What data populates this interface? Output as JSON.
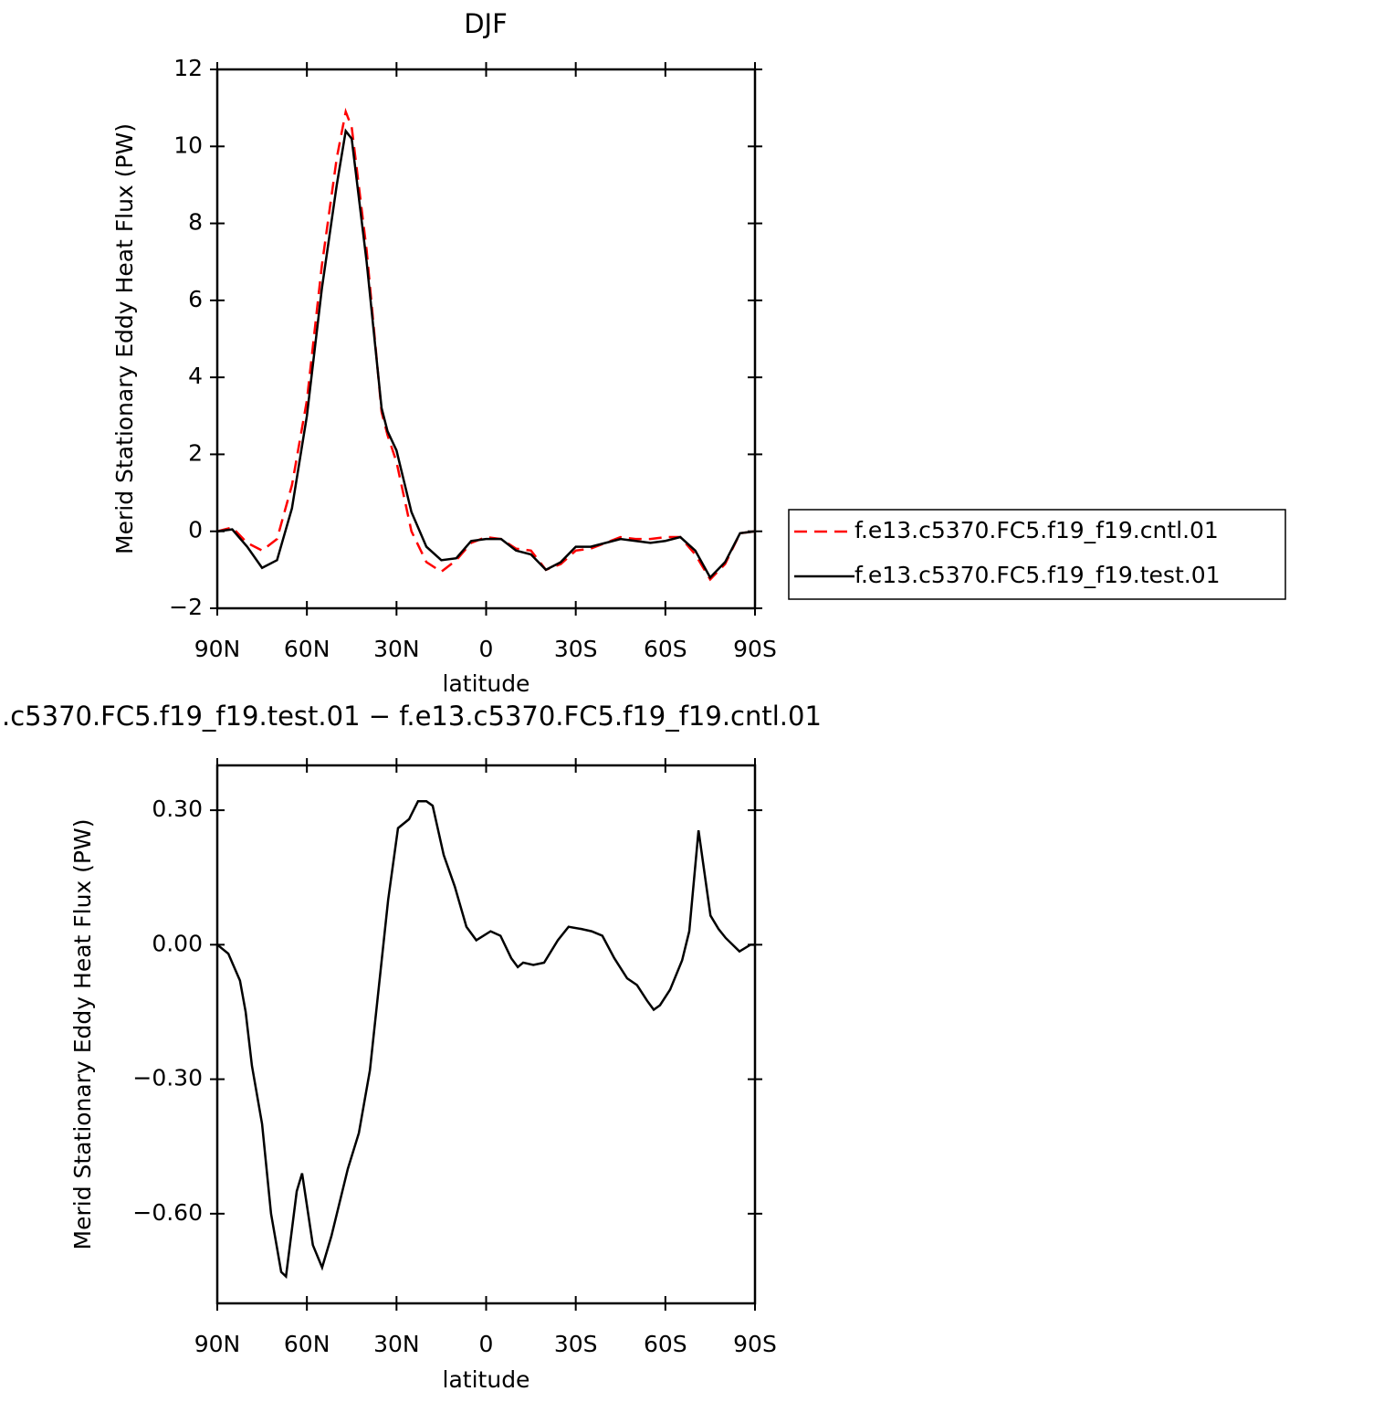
{
  "chart_data": [
    {
      "type": "line",
      "title": "DJF",
      "xlabel": "latitude",
      "ylabel": "Merid Stationary Eddy Heat Flux (PW)",
      "x": [
        90,
        85,
        80,
        75,
        70,
        65,
        60,
        55,
        50,
        47,
        45,
        40,
        35,
        33,
        30,
        25,
        20,
        15,
        10,
        5,
        0,
        -5,
        -10,
        -15,
        -20,
        -25,
        -30,
        -35,
        -40,
        -45,
        -50,
        -55,
        -60,
        -65,
        -70,
        -75,
        -80,
        -85,
        -90
      ],
      "series": [
        {
          "name": "f.e13.c5370.FC5.f19_f19.cntl.01",
          "color": "#ff0000",
          "linestyle": "dashed",
          "values": [
            0,
            0.1,
            -0.3,
            -0.5,
            -0.2,
            1.2,
            3.4,
            6.9,
            9.7,
            10.9,
            10.5,
            7.3,
            3.1,
            2.5,
            1.8,
            0.0,
            -0.8,
            -1.05,
            -0.75,
            -0.3,
            -0.15,
            -0.2,
            -0.45,
            -0.5,
            -1.0,
            -0.85,
            -0.5,
            -0.45,
            -0.3,
            -0.15,
            -0.2,
            -0.2,
            -0.15,
            -0.15,
            -0.6,
            -1.25,
            -0.85,
            -0.05,
            0
          ]
        },
        {
          "name": "f.e13.c5370.FC5.f19_f19.test.01",
          "color": "#000000",
          "linestyle": "solid",
          "values": [
            0,
            0.05,
            -0.4,
            -0.95,
            -0.75,
            0.6,
            3.0,
            6.3,
            9.0,
            10.4,
            10.2,
            7.0,
            3.2,
            2.6,
            2.1,
            0.5,
            -0.4,
            -0.75,
            -0.7,
            -0.25,
            -0.2,
            -0.2,
            -0.5,
            -0.6,
            -1.0,
            -0.8,
            -0.4,
            -0.4,
            -0.3,
            -0.2,
            -0.25,
            -0.3,
            -0.25,
            -0.15,
            -0.5,
            -1.2,
            -0.8,
            -0.05,
            0
          ]
        }
      ],
      "xlim": [
        90,
        -90
      ],
      "xticks": [
        {
          "value": 90,
          "label": "90N"
        },
        {
          "value": 60,
          "label": "60N"
        },
        {
          "value": 30,
          "label": "30N"
        },
        0,
        {
          "value": -30,
          "label": "30S"
        },
        {
          "value": -60,
          "label": "60S"
        },
        {
          "value": -90,
          "label": "90S"
        }
      ],
      "ylim": [
        -2,
        12
      ],
      "yticks": [
        {
          "value": -2,
          "label": "−2"
        },
        0,
        2,
        4,
        6,
        8,
        10,
        12
      ],
      "legend": "right"
    },
    {
      "type": "line",
      "title": ".c5370.FC5.f19_f19.test.01 − f.e13.c5370.FC5.f19_f19.cntl.01",
      "xlabel": "latitude",
      "ylabel": "Merid Stationary Eddy Heat Flux (PW)",
      "x": [
        90,
        86.3,
        82.4,
        80.5,
        78.4,
        75,
        72,
        68.6,
        67,
        63.4,
        61.6,
        58,
        54.9,
        51.8,
        46.3,
        42.6,
        38.9,
        32.8,
        29.5,
        25.8,
        22.8,
        20,
        17.9,
        14.2,
        10.5,
        6.6,
        3.3,
        -1.5,
        -4.8,
        -8.4,
        -10.6,
        -12.4,
        -15.8,
        -19.4,
        -24,
        -27.6,
        -31.9,
        -35.3,
        -38.9,
        -42.9,
        -47.2,
        -50.5,
        -53.9,
        -56.1,
        -58.2,
        -61.6,
        -65.6,
        -68,
        -71.1,
        -75.1,
        -77.8,
        -80.2,
        -84.8,
        -88.5,
        -90
      ],
      "values": [
        0,
        -0.02,
        -0.08,
        -0.15,
        -0.27,
        -0.4,
        -0.6,
        -0.73,
        -0.74,
        -0.55,
        -0.51,
        -0.67,
        -0.72,
        -0.65,
        -0.5,
        -0.42,
        -0.28,
        0.1,
        0.26,
        0.28,
        0.32,
        0.32,
        0.31,
        0.2,
        0.13,
        0.04,
        0.01,
        0.03,
        0.02,
        -0.03,
        -0.05,
        -0.04,
        -0.045,
        -0.04,
        0.01,
        0.04,
        0.035,
        0.03,
        0.02,
        -0.03,
        -0.075,
        -0.09,
        -0.125,
        -0.145,
        -0.135,
        -0.1,
        -0.035,
        0.03,
        0.255,
        0.065,
        0.035,
        0.015,
        -0.015,
        0,
        0
      ],
      "color": "#000000",
      "xlim": [
        90,
        -90
      ],
      "xticks": [
        {
          "value": 90,
          "label": "90N"
        },
        {
          "value": 60,
          "label": "60N"
        },
        {
          "value": 30,
          "label": "30N"
        },
        0,
        {
          "value": -30,
          "label": "30S"
        },
        {
          "value": -60,
          "label": "60S"
        },
        {
          "value": -90,
          "label": "90S"
        }
      ],
      "ylim": [
        -0.8,
        0.4
      ],
      "yticks": [
        {
          "value": -0.6,
          "label": "−0.60"
        },
        {
          "value": -0.3,
          "label": "−0.30"
        },
        {
          "value": 0,
          "label": "0.00"
        },
        {
          "value": 0.3,
          "label": "0.30"
        }
      ]
    }
  ]
}
